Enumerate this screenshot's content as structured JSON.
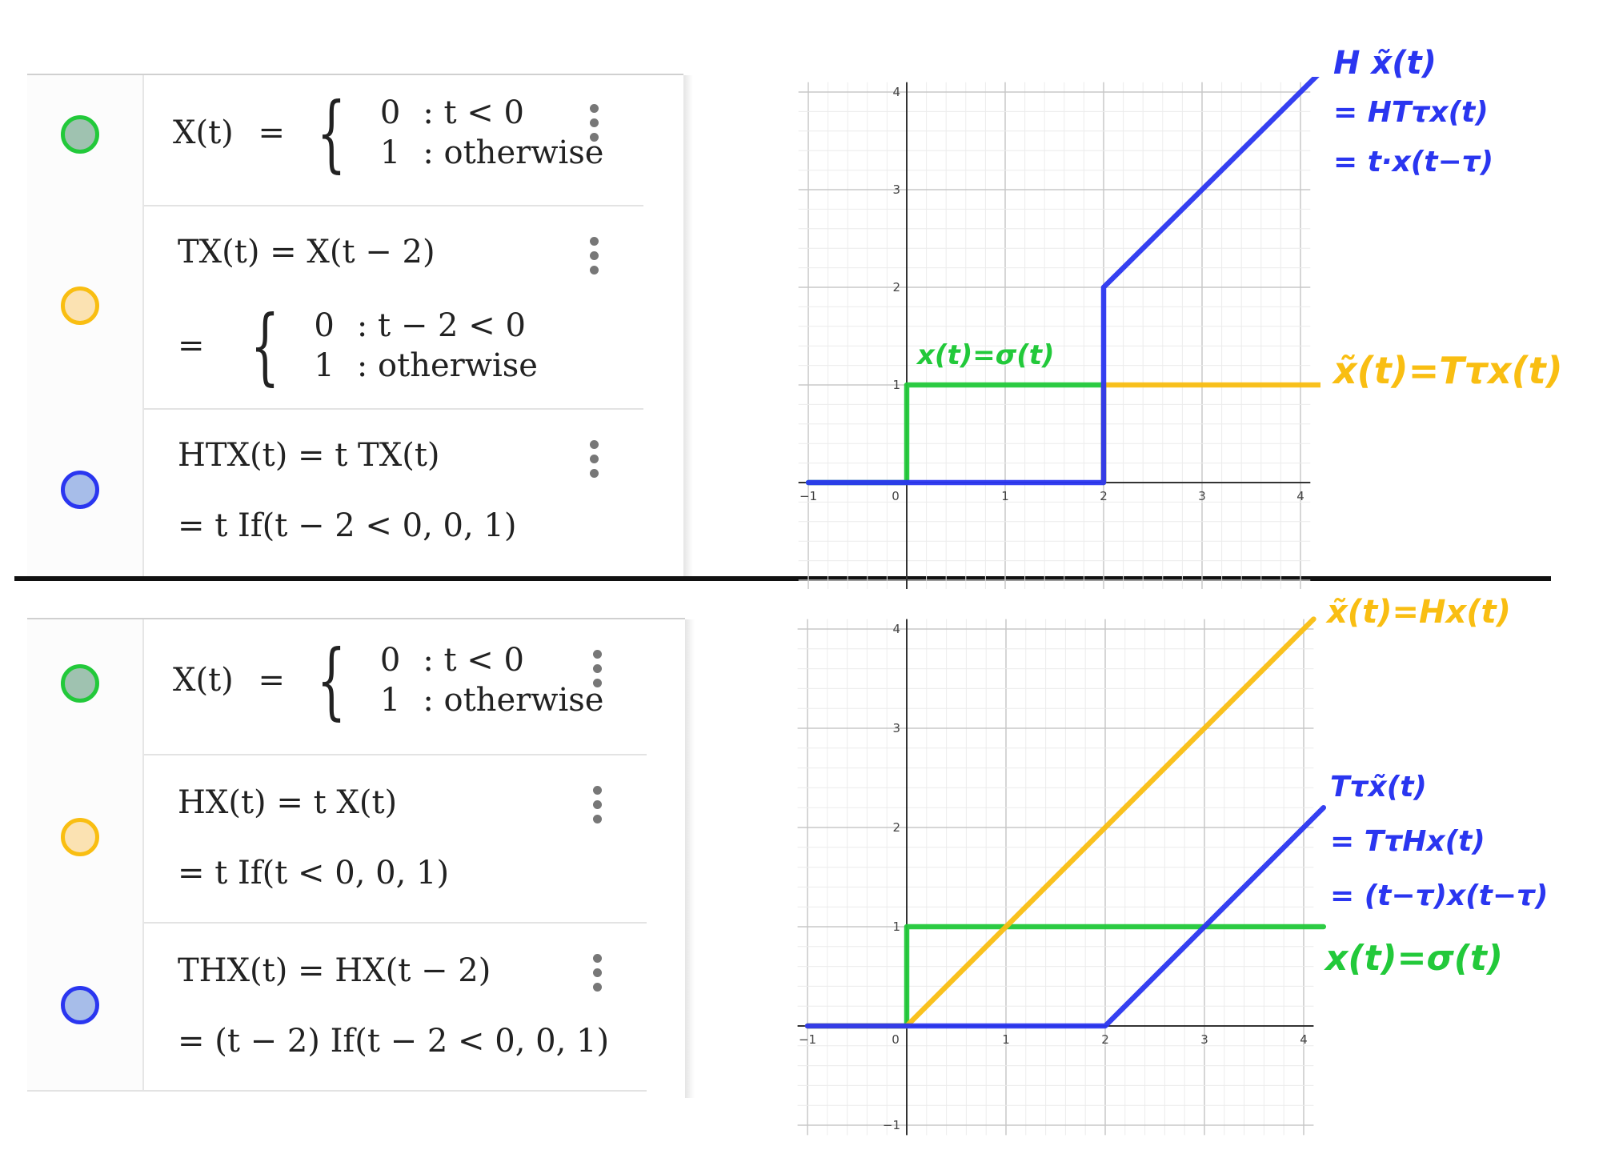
{
  "colors": {
    "green": "#22c93a",
    "green_fill": "#9fc2b0",
    "yellow": "#f9be12",
    "yellow_fill": "#fbe2b2",
    "blue": "#2a36f0",
    "blue_fill": "#a7bde9",
    "divider": "#111111"
  },
  "top_panel": {
    "rows": [
      {
        "color": "green",
        "lhs": "X(t)",
        "op": "=",
        "case1_val": "0",
        "case1_cond": ": t < 0",
        "case2_val": "1",
        "case2_cond": ": otherwise"
      },
      {
        "color": "yellow",
        "line1": "TX(t)  =  X(t − 2)",
        "op": "=",
        "case1_val": "0",
        "case1_cond": ": t − 2 < 0",
        "case2_val": "1",
        "case2_cond": ": otherwise"
      },
      {
        "color": "blue",
        "line1": "HTX(t)  =  t TX(t)",
        "line2": "=   t If(t − 2 < 0, 0, 1)"
      }
    ]
  },
  "bottom_panel": {
    "rows": [
      {
        "color": "green",
        "lhs": "X(t)",
        "op": "=",
        "case1_val": "0",
        "case1_cond": ": t < 0",
        "case2_val": "1",
        "case2_cond": ": otherwise"
      },
      {
        "color": "yellow",
        "line1": "HX(t)  =  t X(t)",
        "line2": "=   t If(t < 0, 0, 1)"
      },
      {
        "color": "blue",
        "line1": "THX(t)  =  HX(t − 2)",
        "line2": "=   (t − 2) If(t − 2 < 0, 0, 1)"
      }
    ]
  },
  "chart_data": [
    {
      "type": "line",
      "xlim": [
        -1,
        4
      ],
      "ylim": [
        -1,
        4
      ],
      "x_ticks": [
        "−1",
        "0",
        "1",
        "2",
        "3",
        "4"
      ],
      "y_ticks": [
        "1",
        "2",
        "3",
        "4"
      ],
      "grid": true,
      "series": [
        {
          "color": "green",
          "points": [
            [
              -1,
              0
            ],
            [
              0,
              0
            ],
            [
              0,
              1
            ],
            [
              2,
              1
            ],
            [
              2,
              0
            ]
          ]
        },
        {
          "color": "yellow",
          "points": [
            [
              2,
              0
            ],
            [
              2,
              1
            ],
            [
              4.2,
              1
            ]
          ]
        },
        {
          "color": "blue",
          "points": [
            [
              -1,
              0
            ],
            [
              2,
              0
            ],
            [
              2,
              2
            ],
            [
              4.2,
              4.2
            ]
          ]
        }
      ],
      "annotations": [
        {
          "color": "blue",
          "lines": [
            "H x̃(t)",
            "= HTτx(t)",
            "= t·x(t−τ)"
          ]
        },
        {
          "color": "yellow",
          "lines": [
            "x̃(t)=Tτx(t)"
          ]
        },
        {
          "color": "green",
          "lines": [
            "x(t)=σ(t)"
          ]
        }
      ]
    },
    {
      "type": "line",
      "xlim": [
        -1,
        4
      ],
      "ylim": [
        -1,
        4
      ],
      "x_ticks": [
        "−1",
        "0",
        "1",
        "2",
        "3",
        "4"
      ],
      "y_ticks": [
        "−1",
        "1",
        "2",
        "3",
        "4"
      ],
      "grid": true,
      "series": [
        {
          "color": "green",
          "points": [
            [
              -1,
              0
            ],
            [
              0,
              0
            ],
            [
              0,
              1
            ],
            [
              4.2,
              1
            ]
          ]
        },
        {
          "color": "yellow",
          "points": [
            [
              -1,
              0
            ],
            [
              0,
              0
            ],
            [
              4.1,
              4.1
            ]
          ]
        },
        {
          "color": "blue",
          "points": [
            [
              -1,
              0
            ],
            [
              2,
              0
            ],
            [
              4.2,
              2.2
            ]
          ]
        }
      ],
      "annotations": [
        {
          "color": "yellow",
          "lines": [
            "x̃(t)=Hx(t)"
          ]
        },
        {
          "color": "blue",
          "lines": [
            "Tτx̃(t)",
            "= TτHx(t)",
            "= (t−τ)x(t−τ)"
          ]
        },
        {
          "color": "green",
          "lines": [
            "x(t)=σ(t)"
          ]
        }
      ]
    }
  ]
}
